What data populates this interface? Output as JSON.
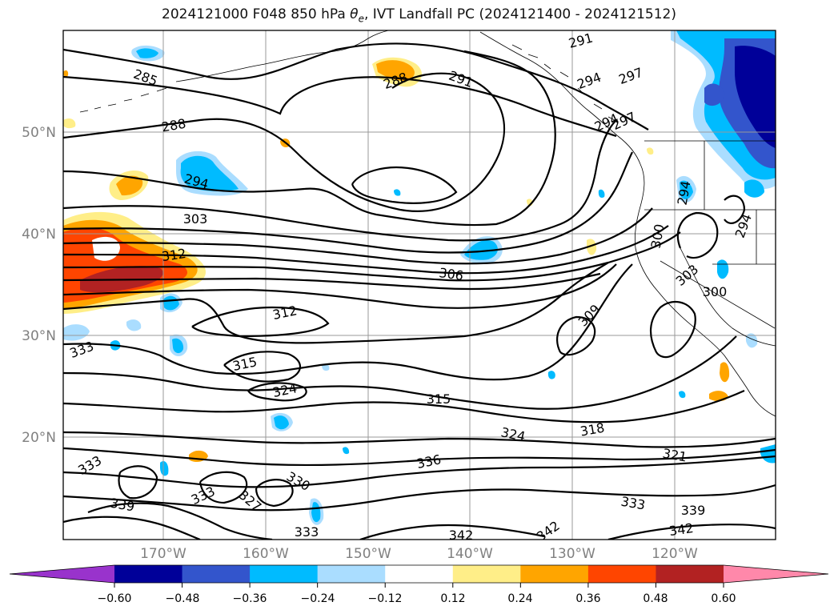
{
  "title": "2024121000 F048 850 hPa θe, IVT Landfall PC (2024121400 - 2024121512)",
  "map": {
    "lat_labels": [
      "50°N",
      "40°N",
      "30°N",
      "20°N"
    ],
    "lon_labels": [
      "170°W",
      "160°W",
      "150°W",
      "140°W",
      "130°W",
      "120°W"
    ],
    "contour_labels": [
      "291",
      "294",
      "297",
      "285",
      "288",
      "291",
      "294",
      "297",
      "288",
      "294",
      "303",
      "312",
      "306",
      "312",
      "315",
      "324",
      "315",
      "324",
      "318",
      "321",
      "333",
      "333",
      "333",
      "330",
      "327",
      "336",
      "333",
      "339",
      "342",
      "342",
      "333",
      "339",
      "300",
      "303",
      "300",
      "309",
      "342",
      "294",
      "294"
    ]
  },
  "colorbar": {
    "ticks": [
      "−0.60",
      "−0.48",
      "−0.36",
      "−0.24",
      "−0.12",
      "0.12",
      "0.24",
      "0.36",
      "0.48",
      "0.60"
    ],
    "colors": [
      "#9933cc",
      "#000099",
      "#3355cc",
      "#00bbff",
      "#aaddff",
      "#ffffff",
      "#ffee88",
      "#ffa500",
      "#ff4500",
      "#b22222",
      "#ff88aa"
    ]
  }
}
